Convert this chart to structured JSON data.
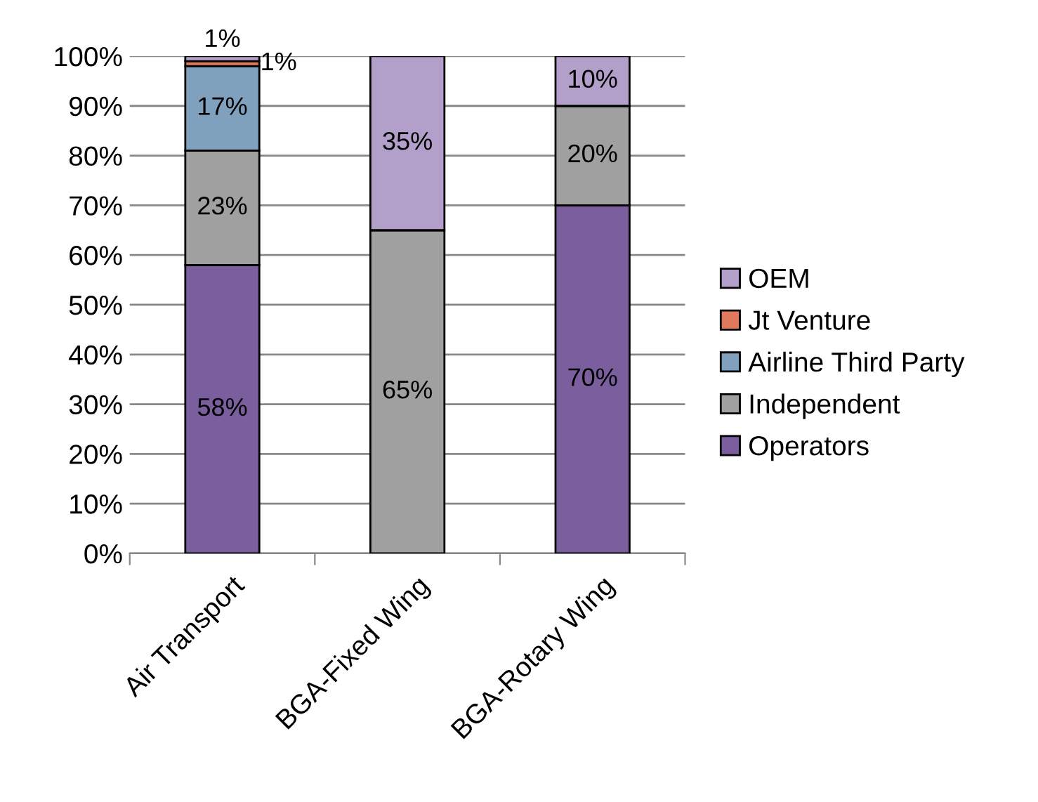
{
  "chart_data": {
    "type": "bar",
    "stacked": true,
    "categories": [
      "Air Transport",
      "BGA-Fixed Wing",
      "BGA-Rotary Wing"
    ],
    "series": [
      {
        "name": "Operators",
        "color": "#7b5e9e",
        "values": [
          58,
          0,
          70
        ],
        "value_labels": [
          "58%",
          null,
          "70%"
        ]
      },
      {
        "name": "Independent",
        "color": "#a0a0a0",
        "values": [
          23,
          65,
          20
        ],
        "value_labels": [
          "23%",
          "65%",
          "20%"
        ]
      },
      {
        "name": "Airline Third Party",
        "color": "#7fa1be",
        "values": [
          17,
          0,
          0
        ],
        "value_labels": [
          "17%",
          null,
          null
        ]
      },
      {
        "name": "Jt Venture",
        "color": "#e07a5f",
        "values": [
          1,
          0,
          0
        ],
        "value_labels": [
          "1%",
          null,
          null
        ]
      },
      {
        "name": "OEM",
        "color": "#b3a0ca",
        "values": [
          1,
          35,
          10
        ],
        "value_labels": [
          "1%",
          "35%",
          "10%"
        ]
      }
    ],
    "ylim": [
      0,
      100
    ],
    "yticks": [
      {
        "value": 0,
        "label": "0%"
      },
      {
        "value": 10,
        "label": "10%"
      },
      {
        "value": 20,
        "label": "20%"
      },
      {
        "value": 30,
        "label": "30%"
      },
      {
        "value": 40,
        "label": "40%"
      },
      {
        "value": 50,
        "label": "50%"
      },
      {
        "value": 60,
        "label": "60%"
      },
      {
        "value": 70,
        "label": "70%"
      },
      {
        "value": 80,
        "label": "80%"
      },
      {
        "value": 90,
        "label": "90%"
      },
      {
        "value": 100,
        "label": "100%"
      }
    ],
    "grid": "y",
    "legend": "right"
  }
}
